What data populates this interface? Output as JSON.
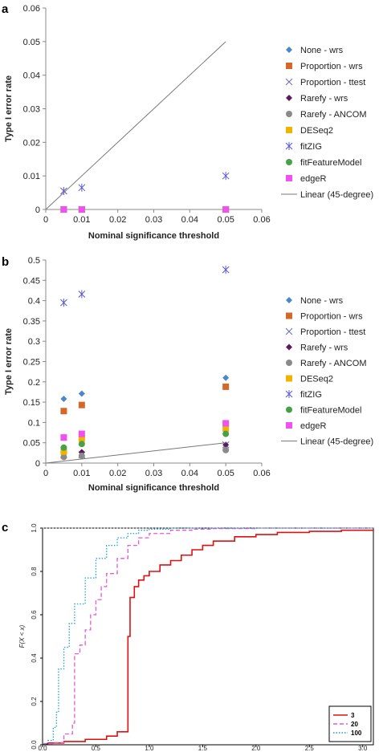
{
  "chart_data": [
    {
      "panel": "a",
      "type": "scatter",
      "xlabel": "Nominal significance threshold",
      "ylabel": "Type I error rate",
      "xlim": [
        0,
        0.06
      ],
      "ylim": [
        0,
        0.06
      ],
      "x_ticks": [
        "0",
        "0.01",
        "0.02",
        "0.03",
        "0.04",
        "0.05",
        "0.06"
      ],
      "y_ticks": [
        "0",
        "0.01",
        "0.02",
        "0.03",
        "0.04",
        "0.05",
        "0.06"
      ],
      "x": [
        0.005,
        0.01,
        0.05
      ],
      "legend_position": "right",
      "series": [
        {
          "name": "None - wrs",
          "marker": "diamond",
          "color": "#4a86c8",
          "values": [
            0,
            0,
            0
          ]
        },
        {
          "name": "Proportion - wrs",
          "marker": "square",
          "color": "#d4672a",
          "values": [
            0,
            0,
            0
          ]
        },
        {
          "name": "Proportion - ttest",
          "marker": "x",
          "color": "#6a6aa8",
          "values": [
            0,
            0,
            0
          ]
        },
        {
          "name": "Rarefy - wrs",
          "marker": "diamond",
          "color": "#5c1a5c",
          "values": [
            0,
            0,
            0
          ]
        },
        {
          "name": "Rarefy - ANCOM",
          "marker": "circle",
          "color": "#8a8a8a",
          "values": [
            0,
            0,
            0
          ]
        },
        {
          "name": "DESeq2",
          "marker": "square",
          "color": "#f0b400",
          "values": [
            0,
            0,
            0
          ]
        },
        {
          "name": "fitZIG",
          "marker": "star",
          "color": "#5858d8",
          "values": [
            0.0055,
            0.0065,
            0.01
          ]
        },
        {
          "name": "fitFeatureModel",
          "marker": "circle",
          "color": "#4aa048",
          "values": [
            0,
            0,
            0
          ]
        },
        {
          "name": "edgeR",
          "marker": "square",
          "color": "#f050f0",
          "values": [
            0,
            0,
            0
          ]
        },
        {
          "name": "Linear (45-degree)",
          "marker": "line",
          "color": "#777777",
          "values": [
            0,
            0.05
          ]
        }
      ]
    },
    {
      "panel": "b",
      "type": "scatter",
      "xlabel": "Nominal significance threshold",
      "ylabel": "Type I error rate",
      "xlim": [
        0,
        0.06
      ],
      "ylim": [
        0,
        0.5
      ],
      "x_ticks": [
        "0",
        "0.01",
        "0.02",
        "0.03",
        "0.04",
        "0.05",
        "0.06"
      ],
      "y_ticks": [
        "0",
        "0.05",
        "0.1",
        "0.15",
        "0.2",
        "0.25",
        "0.3",
        "0.35",
        "0.4",
        "0.45",
        "0.5"
      ],
      "x": [
        0.005,
        0.01,
        0.05
      ],
      "legend_position": "right",
      "series": [
        {
          "name": "None - wrs",
          "marker": "diamond",
          "color": "#4a86c8",
          "values": [
            0.158,
            0.171,
            0.21
          ]
        },
        {
          "name": "Proportion - wrs",
          "marker": "square",
          "color": "#d4672a",
          "values": [
            0.128,
            0.143,
            0.188
          ]
        },
        {
          "name": "Proportion - ttest",
          "marker": "x",
          "color": "#6a6aa8",
          "values": [
            0.02,
            0.02,
            0.045
          ]
        },
        {
          "name": "Rarefy - wrs",
          "marker": "diamond",
          "color": "#5c1a5c",
          "values": [
            0.022,
            0.027,
            0.045
          ]
        },
        {
          "name": "Rarefy - ANCOM",
          "marker": "circle",
          "color": "#8a8a8a",
          "values": [
            0.015,
            0.018,
            0.032
          ]
        },
        {
          "name": "DESeq2",
          "marker": "square",
          "color": "#f0b400",
          "values": [
            0.028,
            0.06,
            0.085
          ]
        },
        {
          "name": "fitZIG",
          "marker": "star",
          "color": "#5858d8",
          "values": [
            0.395,
            0.416,
            0.476
          ]
        },
        {
          "name": "fitFeatureModel",
          "marker": "circle",
          "color": "#4aa048",
          "values": [
            0.038,
            0.047,
            0.072
          ]
        },
        {
          "name": "edgeR",
          "marker": "square",
          "color": "#f050f0",
          "values": [
            0.063,
            0.072,
            0.098
          ]
        },
        {
          "name": "Linear (45-degree)",
          "marker": "line",
          "color": "#777777",
          "values": [
            0,
            0.05
          ]
        }
      ]
    },
    {
      "panel": "c",
      "type": "line",
      "xlabel": "Effect Size (Cohen's d)",
      "ylabel": "F(X < x)",
      "xlim": [
        0,
        3.1
      ],
      "ylim": [
        0,
        1
      ],
      "x_ticks": [
        "0.0",
        "0.5",
        "1.0",
        "1.5",
        "2.0",
        "2.5",
        "3.0"
      ],
      "y_ticks": [
        "0.0",
        "0.2",
        "0.4",
        "0.6",
        "0.8",
        "1.0"
      ],
      "legend_position": "bottom-right",
      "series": [
        {
          "name": "3",
          "style": "solid",
          "color": "#dd1111",
          "x": [
            0,
            0.05,
            0.2,
            0.4,
            0.6,
            0.7,
            0.8,
            0.8,
            0.82,
            0.86,
            0.9,
            0.95,
            1.0,
            1.1,
            1.2,
            1.3,
            1.4,
            1.5,
            1.6,
            1.8,
            2.0,
            2.2,
            2.5,
            2.8,
            3.1
          ],
          "y": [
            0.005,
            0.008,
            0.015,
            0.025,
            0.04,
            0.06,
            0.09,
            0.5,
            0.68,
            0.73,
            0.76,
            0.78,
            0.8,
            0.83,
            0.85,
            0.875,
            0.9,
            0.92,
            0.94,
            0.96,
            0.97,
            0.98,
            0.985,
            0.99,
            0.992
          ]
        },
        {
          "name": "20",
          "style": "dashed",
          "color": "#e25ad4",
          "x": [
            0,
            0.1,
            0.2,
            0.28,
            0.3,
            0.3,
            0.35,
            0.4,
            0.45,
            0.5,
            0.55,
            0.6,
            0.7,
            0.8,
            0.9,
            1.0,
            1.2,
            1.4,
            1.6,
            2.0,
            3.1
          ],
          "y": [
            0.005,
            0.01,
            0.05,
            0.1,
            0.13,
            0.42,
            0.46,
            0.53,
            0.6,
            0.67,
            0.73,
            0.79,
            0.86,
            0.92,
            0.955,
            0.975,
            0.99,
            0.995,
            0.998,
            1.0,
            1.0
          ]
        },
        {
          "name": "100",
          "style": "dotted",
          "color": "#1a9fd8",
          "x": [
            0,
            0.05,
            0.1,
            0.13,
            0.15,
            0.15,
            0.2,
            0.25,
            0.3,
            0.4,
            0.5,
            0.6,
            0.7,
            0.8,
            0.9,
            1.0,
            1.2,
            3.1
          ],
          "y": [
            0.005,
            0.02,
            0.08,
            0.15,
            0.22,
            0.35,
            0.45,
            0.56,
            0.65,
            0.77,
            0.86,
            0.92,
            0.955,
            0.975,
            0.99,
            0.995,
            1.0,
            1.0
          ]
        }
      ]
    }
  ]
}
